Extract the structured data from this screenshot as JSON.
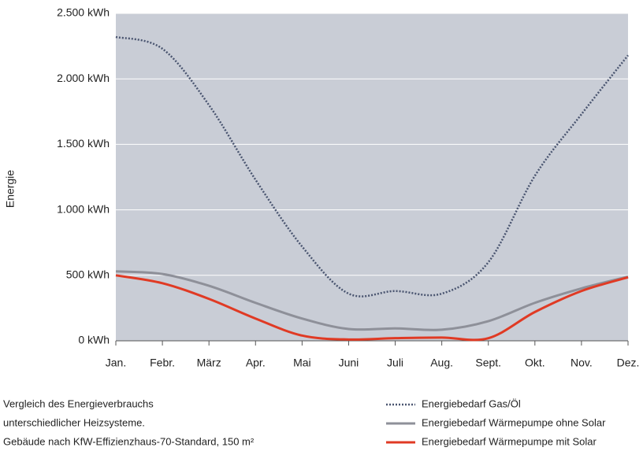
{
  "chart_data": {
    "type": "line",
    "ylabel": "Energie",
    "categories": [
      "Jan.",
      "Febr.",
      "März",
      "Apr.",
      "Mai",
      "Juni",
      "Juli",
      "Aug.",
      "Sept.",
      "Okt.",
      "Nov.",
      "Dez."
    ],
    "series": [
      {
        "name": "Energiebedarf Gas/Öl",
        "color": "#4a5570",
        "style": "dotted",
        "values": [
          2320,
          2230,
          1800,
          1230,
          720,
          360,
          380,
          360,
          600,
          1260,
          1730,
          2180
        ]
      },
      {
        "name": "Energiebedarf Wärmepumpe ohne Solar",
        "color": "#8e9099",
        "style": "solid",
        "values": [
          530,
          510,
          420,
          290,
          170,
          90,
          95,
          85,
          150,
          290,
          400,
          490
        ]
      },
      {
        "name": "Energiebedarf Wärmepumpe mit Solar",
        "color": "#e03a24",
        "style": "solid",
        "values": [
          500,
          440,
          320,
          170,
          40,
          10,
          20,
          25,
          20,
          220,
          380,
          485
        ]
      }
    ],
    "ylim": [
      0,
      2500
    ],
    "yticks": [
      {
        "value": 0,
        "label": "0 kWh"
      },
      {
        "value": 500,
        "label": "500 kWh"
      },
      {
        "value": 1000,
        "label": "1.000 kWh"
      },
      {
        "value": 1500,
        "label": "1.500 kWh"
      },
      {
        "value": 2000,
        "label": "2.000 kWh"
      },
      {
        "value": 2500,
        "label": "2.500 kWh"
      }
    ],
    "grid": true,
    "background": "#c9cdd6",
    "note": [
      "Vergleich des Energieverbrauchs",
      "unterschiedlicher Heizsysteme.",
      "Gebäude nach KfW-Effizienzhaus-70-Standard, 150 m²"
    ]
  }
}
